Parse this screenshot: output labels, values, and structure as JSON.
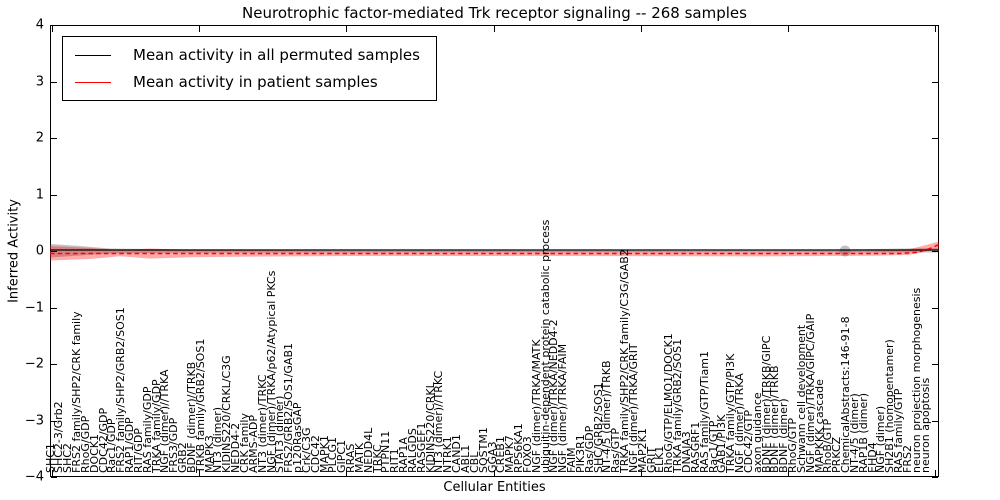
{
  "figure": {
    "title": "Neurotrophic factor-mediated Trk receptor signaling -- 268 samples",
    "ylabel": "Inferred Activity",
    "xlabel": "Cellular Entities",
    "background_color": "#ffffff",
    "axis_color": "#000000"
  },
  "legend": {
    "items": [
      {
        "label": "Mean activity in all permuted samples",
        "color": "#000000",
        "line_style": "solid"
      },
      {
        "label": "Mean activity in patient samples",
        "color": "#ff0000",
        "line_style": "dashed"
      }
    ]
  },
  "axes": {
    "y_ticks": [
      "4",
      "3",
      "2",
      "1",
      "0",
      "−1",
      "−2",
      "−3",
      "−4"
    ],
    "ylim": [
      -4,
      4
    ],
    "x_major_tick_count": 7
  },
  "chart_data": {
    "type": "line",
    "title": "Neurotrophic factor-mediated Trk receptor signaling -- 268 samples",
    "xlabel": "Cellular Entities",
    "ylabel": "Inferred Activity",
    "ylim": [
      -4,
      4
    ],
    "grid": false,
    "legend_position": "upper left",
    "categories": [
      "SHC1",
      "SHC2-3/Grb2",
      "SHC2",
      "FRS2 family/SHP2/CRK family",
      "RhoG/GDP",
      "DOCK1",
      "CDC42/GDP",
      "Rac1/GDP",
      "FRS2 family/SHP2/GRB2/SOS1",
      "RAP1/GDP",
      "RIT/GDP",
      "RAS family/GDP",
      "TRKA family/GDP",
      "NGF (dimer)//TRKA",
      "FRS3/GDP",
      "GRB2",
      "BDNF (dimer)//TRKB",
      "TRKB family/GRB2/SOS1",
      "MAPK3",
      "NT3 (dimer)",
      "KIDINS220/CRKL/C3G",
      "NEDD4-2",
      "CRK family",
      "ARMS-ADP",
      "NT3 (dimer)/TRKC",
      "NGF (dimer)/TRKA/p62/Atypical PKCs",
      "STAT3 (dimer)",
      "FRS2/GRB2/SOS1/GAB1",
      "p120RasGAP",
      "Crk/C3G",
      "CDC42",
      "MAPK1",
      "PLCG1",
      "GIPC1",
      "RRAS",
      "MATK",
      "NEDD4L",
      "TRKC",
      "PTPN11",
      "RIT1",
      "RAP1A",
      "RALGDS",
      "RASGEF1",
      "KIDINS220/CRKL",
      "NT3 (dimer)//TRKC",
      "NTRK1",
      "CAND1",
      "ABL1",
      "CBL",
      "SQSTM1",
      "GGA3",
      "CREB1",
      "MAPK7",
      "RPS6KA1",
      "FOXO3",
      "NGF (dimer)/TRKA/MATK",
      "ubiquitin-dependent protein catabolic process",
      "NGF (dimer)/TRKA/NEDD4-2",
      "NGF (dimer)/TRKA/FAIM",
      "FAIM",
      "PIK3R1",
      "Ras/GDP",
      "SHC/GRB2/SOS1",
      "NT-4/5 (dimer)/TRKB",
      "Ras/GTP",
      "TRKA family/SHP2/CRK family/C3G/GAB2",
      "NGF (dimer)/TRKA/GRIT",
      "MAP2K1",
      "GRIT",
      "ELK1",
      "RhoG/GTP/ELMO1/DOCK1",
      "TRKA family/GRB2/SOS1",
      "DNAJA3",
      "RASGRF1",
      "RAS family/GTP/Tiam1",
      "Rac1/GTP",
      "GAB1/PI3K",
      "TRKA family/GTP/PI3K",
      "NGF (dimer)/TRKA",
      "CDC42/GTP",
      "axon guidance",
      "BDNF (dimer)/TRKB/GIPC",
      "BDNF (dimer)/TRKB",
      "BDNF (dimer)",
      "RhoG/GTP",
      "Schwann cell development",
      "NGF (dimer)/TRKA/GIPC/GAIP",
      "MAPKKK cascade",
      "RhoB/GTP",
      "PRKCZ",
      "ChemicalAbstracts:146-91-8",
      "NT-4/5 (dimer)",
      "RAP1B (dimer)",
      "EHD4",
      "NGF (dimer)",
      "SH2B1 (homopentamer)",
      "RAS family/GTP",
      "FRS2",
      "neuron projection morphogenesis",
      "neuron apoptosis"
    ],
    "series": [
      {
        "name": "Mean activity in all permuted samples",
        "color": "#000000",
        "line_style": "solid",
        "band": "narrow gray shaded confidence band around 0, slightly wider at far left and one mid-right entity",
        "values": [
          0,
          0,
          0,
          0,
          0,
          0,
          0,
          0,
          0,
          0,
          0,
          0,
          0,
          0,
          0,
          0,
          0,
          0,
          0,
          0,
          0,
          0,
          0,
          0,
          0,
          0,
          0,
          0,
          0,
          0,
          0,
          0,
          0,
          0,
          0,
          0,
          0,
          0,
          0,
          0,
          0,
          0,
          0,
          0,
          0,
          0,
          0,
          0,
          0,
          0,
          0,
          0,
          0,
          0,
          0,
          0,
          0,
          0,
          0,
          0,
          0,
          0,
          0,
          0,
          0,
          0,
          0,
          0,
          0,
          0,
          0,
          0,
          0,
          0,
          0,
          0,
          0,
          0,
          0,
          0,
          0,
          0,
          0,
          0,
          0,
          0,
          0,
          0,
          0,
          0,
          0,
          0,
          0,
          0,
          0,
          0,
          0,
          0,
          0,
          0
        ]
      },
      {
        "name": "Mean activity in patient samples",
        "color": "#ff0000",
        "line_style": "dashed",
        "band": "light red shaded band, widest at far left entities and rising at the rightmost entity",
        "values": [
          -0.08,
          -0.08,
          -0.08,
          -0.08,
          -0.08,
          -0.05,
          -0.05,
          -0.05,
          -0.05,
          -0.05,
          -0.05,
          -0.05,
          -0.05,
          -0.05,
          -0.05,
          -0.05,
          -0.05,
          -0.05,
          -0.05,
          -0.05,
          -0.05,
          -0.05,
          -0.05,
          -0.05,
          -0.05,
          -0.05,
          -0.05,
          -0.05,
          -0.05,
          -0.05,
          -0.05,
          -0.05,
          -0.05,
          -0.05,
          -0.05,
          -0.05,
          -0.05,
          -0.05,
          -0.05,
          -0.05,
          -0.05,
          -0.05,
          -0.05,
          -0.05,
          -0.05,
          -0.05,
          -0.05,
          -0.05,
          -0.05,
          -0.05,
          -0.05,
          -0.05,
          -0.05,
          -0.05,
          -0.05,
          -0.05,
          -0.05,
          -0.05,
          -0.05,
          -0.05,
          -0.05,
          -0.05,
          -0.05,
          -0.05,
          -0.05,
          -0.05,
          -0.05,
          -0.05,
          -0.05,
          -0.05,
          -0.05,
          -0.05,
          -0.05,
          -0.05,
          -0.05,
          -0.05,
          -0.05,
          -0.05,
          -0.05,
          -0.05,
          -0.05,
          -0.05,
          -0.05,
          -0.05,
          -0.05,
          -0.05,
          -0.05,
          -0.05,
          -0.05,
          -0.05,
          -0.05,
          -0.05,
          -0.05,
          -0.05,
          -0.05,
          -0.05,
          -0.05,
          -0.05,
          -0.05,
          0.1
        ]
      }
    ]
  }
}
